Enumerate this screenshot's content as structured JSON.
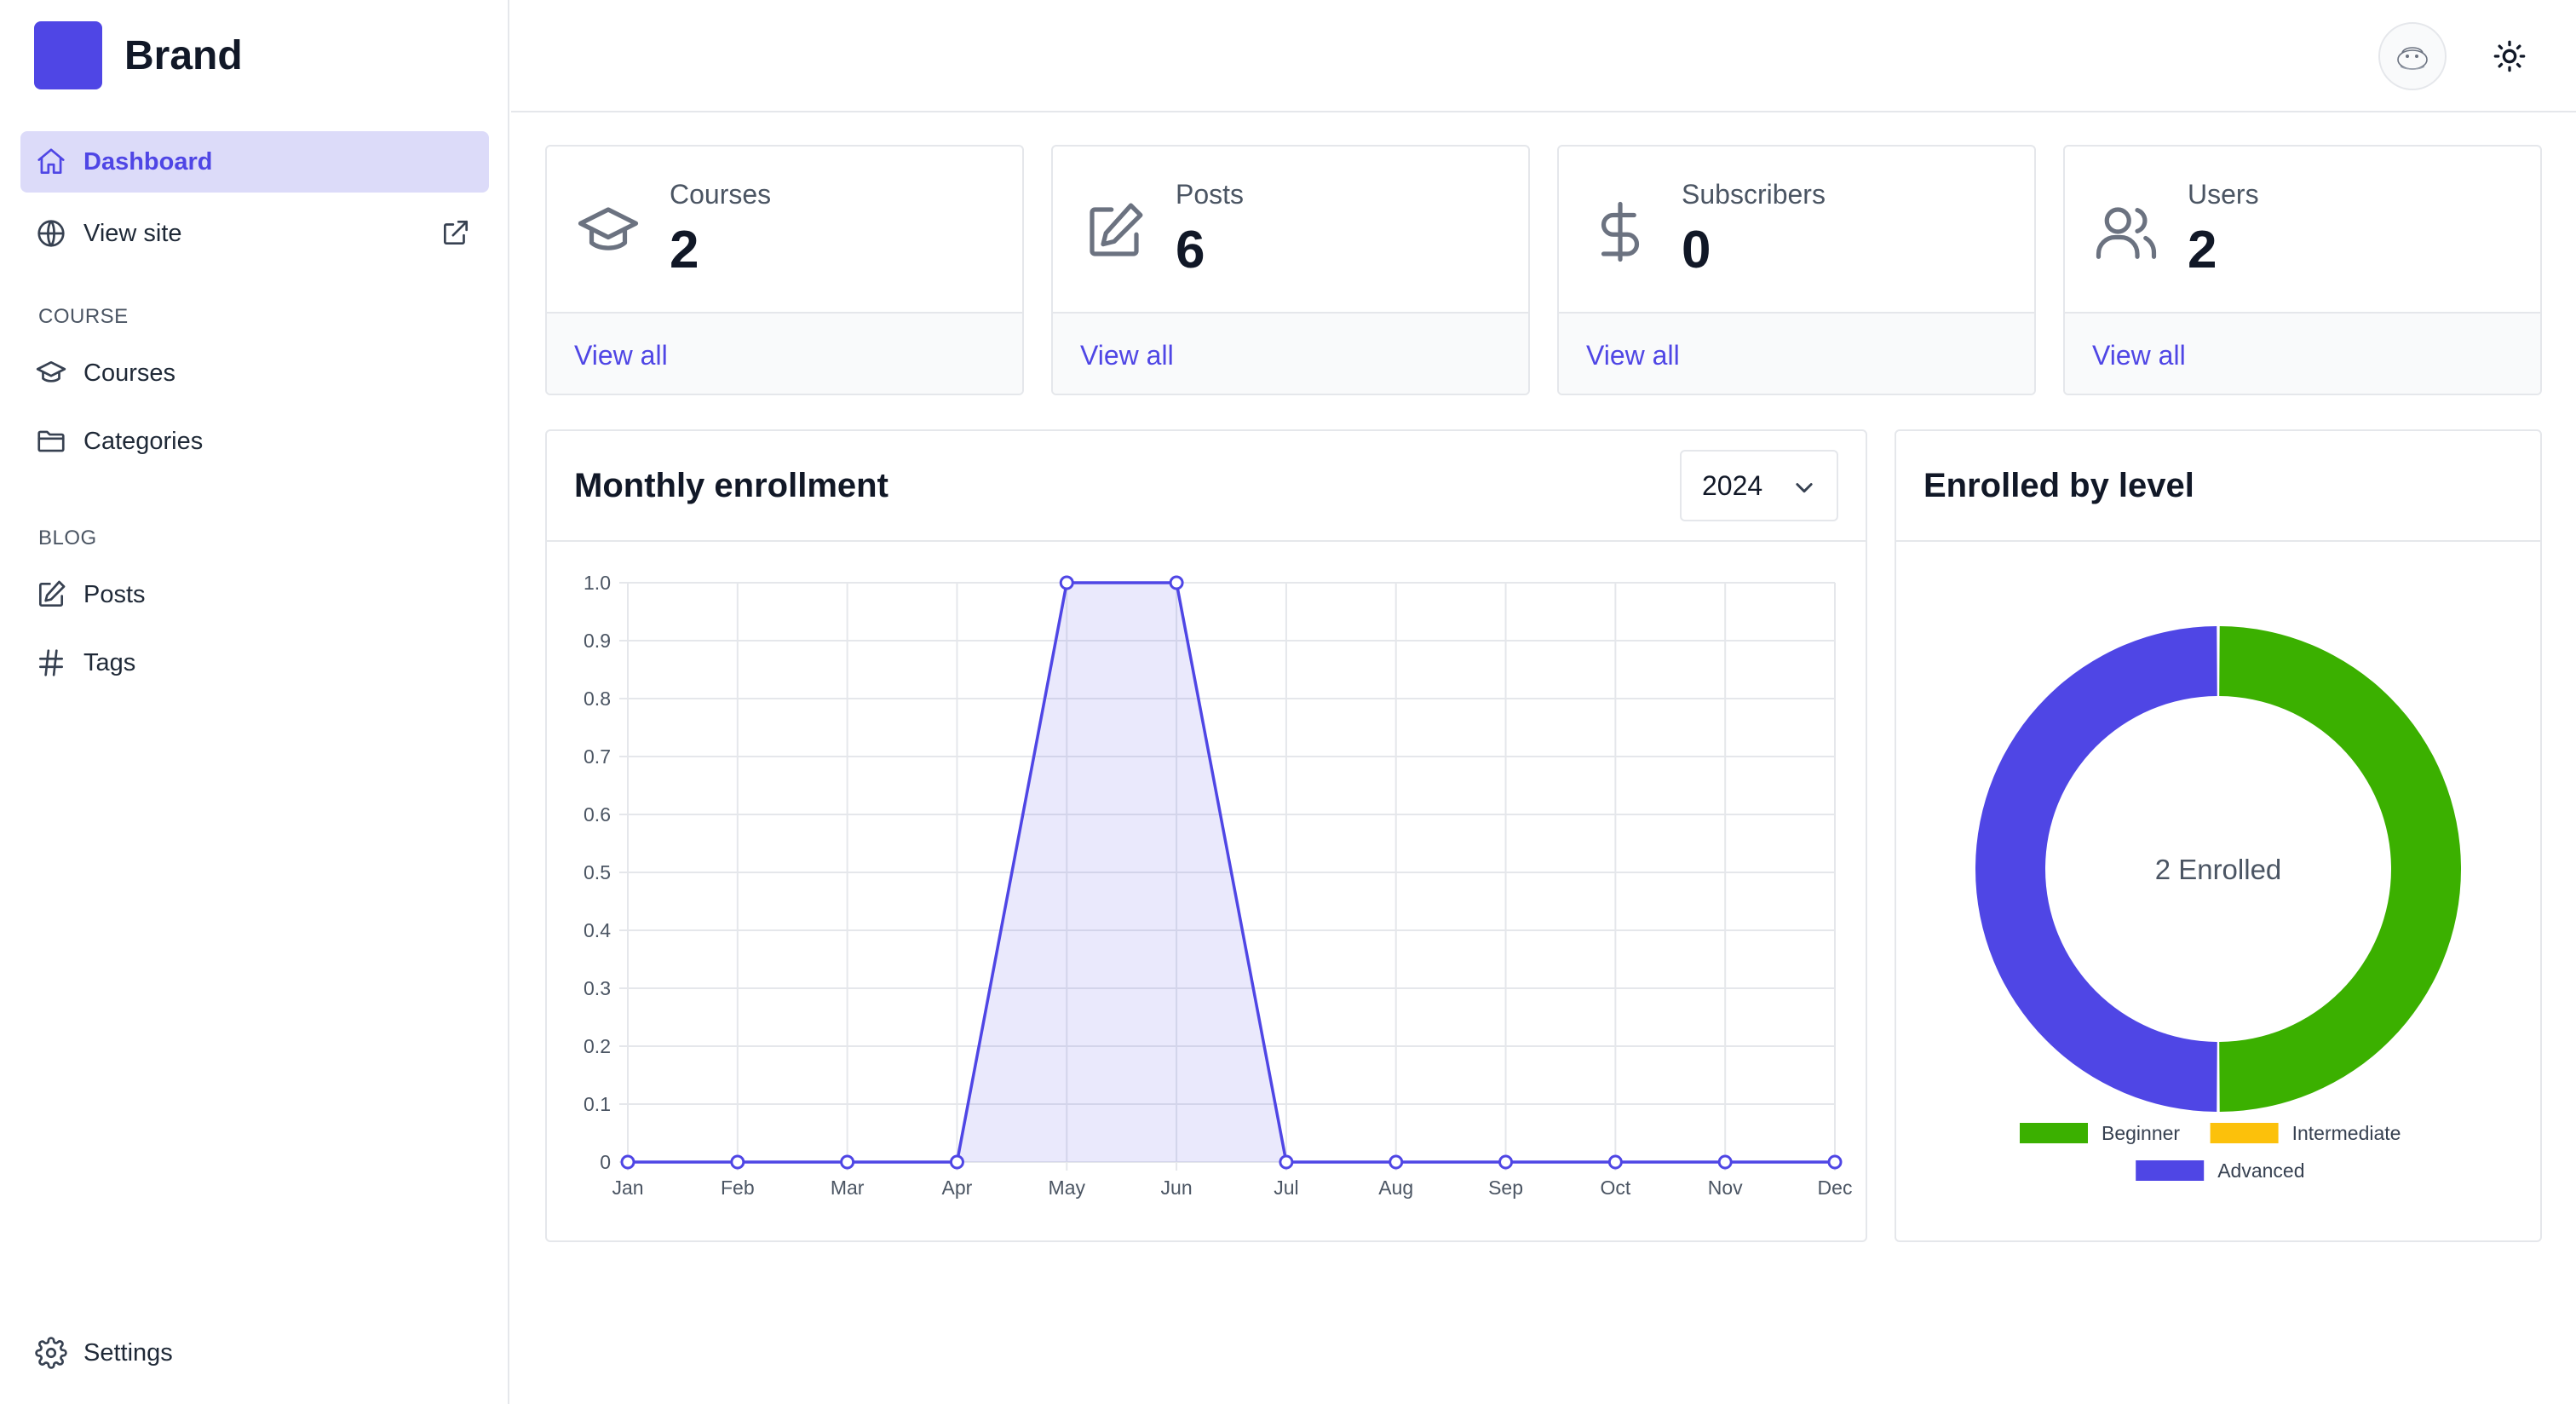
{
  "brand": {
    "name": "Brand",
    "logo_color": "#4f46e5"
  },
  "sidebar": {
    "dashboard_label": "Dashboard",
    "view_site_label": "View site",
    "course_section": "COURSE",
    "courses_label": "Courses",
    "categories_label": "Categories",
    "blog_section": "BLOG",
    "posts_label": "Posts",
    "tags_label": "Tags",
    "settings_label": "Settings"
  },
  "topbar": {
    "avatar_icon": "avatar-icon",
    "theme_icon": "sun-icon"
  },
  "stats": [
    {
      "label": "Courses",
      "value": "2",
      "link": "View all",
      "icon": "graduation-cap-icon"
    },
    {
      "label": "Posts",
      "value": "6",
      "link": "View all",
      "icon": "edit-icon"
    },
    {
      "label": "Subscribers",
      "value": "0",
      "link": "View all",
      "icon": "dollar-icon"
    },
    {
      "label": "Users",
      "value": "2",
      "link": "View all",
      "icon": "users-icon"
    }
  ],
  "enrollment": {
    "title": "Monthly enrollment",
    "year": "2024"
  },
  "level": {
    "title": "Enrolled by level",
    "center_label": "2 Enrolled"
  },
  "colors": {
    "accent": "#4f46e5",
    "beginner": "#3bb000",
    "intermediate": "#fcc10b",
    "advanced": "#4f46e5"
  },
  "chart_data": [
    {
      "type": "line",
      "fill": true,
      "x": [
        "Jan",
        "Feb",
        "Mar",
        "Apr",
        "May",
        "Jun",
        "Jul",
        "Aug",
        "Sep",
        "Oct",
        "Nov",
        "Dec"
      ],
      "values": [
        0,
        0,
        0,
        0,
        1,
        1,
        0,
        0,
        0,
        0,
        0,
        0
      ],
      "ylim": [
        0,
        1.0
      ],
      "yticks": [
        "0",
        "0.1",
        "0.2",
        "0.3",
        "0.4",
        "0.5",
        "0.6",
        "0.7",
        "0.8",
        "0.9",
        "1.0"
      ],
      "grid": true,
      "color": "#4f46e5"
    },
    {
      "type": "pie",
      "donut": true,
      "labels": [
        "Beginner",
        "Intermediate",
        "Advanced"
      ],
      "values": [
        1,
        0,
        1
      ],
      "colors": [
        "#3bb000",
        "#fcc10b",
        "#4f46e5"
      ],
      "legend": "bottom"
    }
  ]
}
